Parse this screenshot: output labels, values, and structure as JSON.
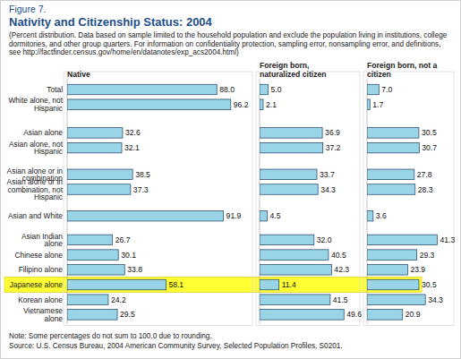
{
  "figure_label": "Figure 7.",
  "note": "Note: Some percentages do not sum to 100.0 due to rounding.",
  "source": "Source: U.S. Census Bureau, 2004 American Community Survey, Selected Population Profiles, S0201.",
  "chart_data": {
    "type": "bar",
    "orientation": "horizontal",
    "title": "Nativity and Citizenship Status: 2004",
    "subtitle": "(Percent distribution. Data based on sample limited to the household population and exclude the population living in institutions, college dormitories, and other group quarters. For information on confidentiality protection, sampling error, nonsampling error, and definitions, see http://factfinder.census.gov/home/en/datanotes/exp_acs2004.html)",
    "categories": [
      "Total",
      "White alone, not Hispanic",
      "Asian alone",
      "Asian alone, not Hispanic",
      "Asian alone or in combination",
      "Asian alone or in combination, not Hispanic",
      "Asian and White",
      "Asian Indian alone",
      "Chinese alone",
      "Filipino alone",
      "Japanese alone",
      "Korean alone",
      "Vietnamese alone"
    ],
    "series": [
      {
        "name": "Native",
        "color": "#99d5e6",
        "values": [
          88.0,
          96.2,
          32.6,
          32.1,
          38.5,
          37.3,
          91.9,
          26.7,
          30.1,
          33.8,
          58.1,
          24.2,
          29.5
        ],
        "value_labels": [
          "88.0",
          "96.2",
          "32.6",
          "32.1",
          "38.5",
          "37.3",
          "91.9",
          "26.7",
          "30.1",
          "33.8",
          "58.1",
          "24.2",
          "29.5"
        ]
      },
      {
        "name": "Foreign born, naturalized citizen",
        "color": "#99d5e6",
        "values": [
          5.0,
          2.1,
          36.9,
          37.2,
          33.7,
          34.3,
          4.5,
          32.0,
          40.5,
          42.3,
          11.4,
          41.5,
          49.6
        ],
        "value_labels": [
          "5.0",
          "2.1",
          "36.9",
          "37.2",
          "33.7",
          "34.3",
          "4.5",
          "32.0",
          "40.5",
          "42.3",
          "11.4",
          "41.5",
          "49.6"
        ]
      },
      {
        "name": "Foreign born, not a citizen",
        "color": "#99d5e6",
        "values": [
          7.0,
          1.7,
          30.5,
          30.7,
          27.8,
          28.3,
          3.6,
          41.3,
          29.3,
          23.9,
          30.5,
          34.3,
          20.9
        ],
        "value_labels": [
          "7.0",
          "1.7",
          "30.5",
          "30.7",
          "27.8",
          "28.3",
          "3.6",
          "41.3",
          "29.3",
          "23.9",
          "30.5",
          "34.3",
          "20.9"
        ]
      }
    ],
    "xlim": [
      0,
      100
    ],
    "tick_labels": false,
    "grid": false,
    "data_labels": true
  }
}
